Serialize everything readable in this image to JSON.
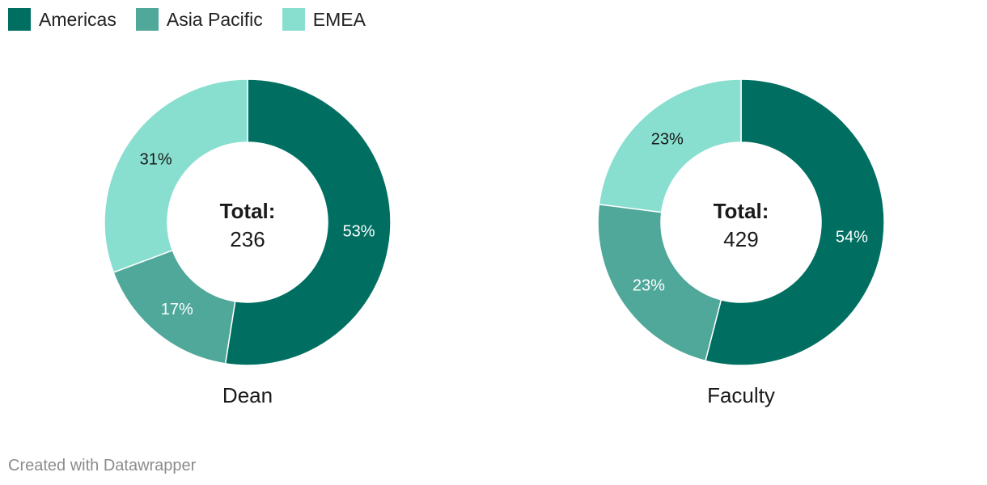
{
  "legend": [
    {
      "label": "Americas",
      "color": "#006f62"
    },
    {
      "label": "Asia Pacific",
      "color": "#4fa89a"
    },
    {
      "label": "EMEA",
      "color": "#88dfcf"
    }
  ],
  "chart_data": [
    {
      "type": "pie",
      "name": "Dean",
      "center_title": "Total:",
      "center_value": "236",
      "series": [
        {
          "name": "Americas",
          "value": 53,
          "label": "53%"
        },
        {
          "name": "Asia Pacific",
          "value": 17,
          "label": "17%"
        },
        {
          "name": "EMEA",
          "value": 31,
          "label": "31%"
        }
      ]
    },
    {
      "type": "pie",
      "name": "Faculty",
      "center_title": "Total:",
      "center_value": "429",
      "series": [
        {
          "name": "Americas",
          "value": 54,
          "label": "54%"
        },
        {
          "name": "Asia Pacific",
          "value": 23,
          "label": "23%"
        },
        {
          "name": "EMEA",
          "value": 23,
          "label": "23%"
        }
      ]
    }
  ],
  "footer": {
    "credit": "Created with Datawrapper"
  }
}
